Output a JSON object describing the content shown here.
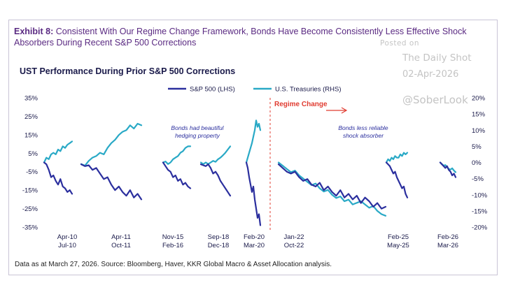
{
  "header": {
    "exhibit_label": "Exhibit 8:",
    "exhibit_text": " Consistent With Our Regime Change Framework, Bonds Have Become Consistently Less Effective Shock Absorbers During Recent S&P 500 Corrections"
  },
  "watermark": {
    "posted": "Posted on",
    "title": "The Daily Shot",
    "date": "02-Apr-2026",
    "handle": "@SoberLook"
  },
  "source": "Data as at March 27, 2026. Source: Bloomberg, Haver, KKR Global Macro & Asset Allocation analysis.",
  "colors": {
    "title_purple": "#5a2a82",
    "sp500": "#2b2f9e",
    "treasuries": "#29a9c6",
    "regime": "#e03c31",
    "axis_text": "#1a1a4a"
  },
  "chart_data": {
    "type": "line",
    "title": "UST Performance During Prior S&P 500 Corrections",
    "legend": [
      "S&P 500 (LHS)",
      "U.S. Treasuries (RHS)"
    ],
    "left_axis": {
      "min": -35,
      "max": 35,
      "ticks": [
        "35%",
        "25%",
        "15%",
        "5%",
        "-5%",
        "-15%",
        "-25%",
        "-35%"
      ]
    },
    "right_axis": {
      "min": -20,
      "max": 20,
      "ticks": [
        "20%",
        "15%",
        "10%",
        "5%",
        "0%",
        "-5%",
        "-10%",
        "-15%",
        "-20%"
      ]
    },
    "regime_label": "Regime Change",
    "annotations": [
      {
        "text": [
          "Bonds had beautiful",
          "hedging property"
        ]
      },
      {
        "text": [
          "Bonds less reliable",
          "shock absorber"
        ]
      }
    ],
    "episodes": [
      {
        "labels": [
          "Apr-10",
          "Jul-10"
        ],
        "sp500": [
          0,
          -1,
          -4,
          -8,
          -7,
          -10,
          -12,
          -9,
          -13,
          -14,
          -16,
          -15,
          -17
        ],
        "ust": [
          0,
          1.5,
          1,
          2.5,
          3,
          2.5,
          4,
          3.5,
          5,
          4.5,
          5.5,
          6,
          6.5
        ]
      },
      {
        "labels": [
          "Apr-11",
          "Oct-11"
        ],
        "sp500": [
          -1,
          -2,
          -1.5,
          -4,
          -3,
          -6,
          -9,
          -8,
          -12,
          -15,
          -13,
          -16,
          -18,
          -15,
          -19,
          -17,
          -20
        ],
        "ust": [
          -0.5,
          -1,
          0.5,
          1.5,
          2,
          3,
          2.5,
          4.5,
          6,
          7,
          8.5,
          9.5,
          10,
          11.5,
          10.5,
          12,
          11.5
        ]
      },
      {
        "labels": [
          "Nov-15",
          "Feb-16"
        ],
        "sp500": [
          0,
          -2,
          -4,
          -5,
          -8,
          -7,
          -10,
          -9,
          -12,
          -11,
          -13,
          -14
        ],
        "ust": [
          0,
          0.3,
          -0.5,
          0,
          1,
          1.5,
          2,
          3,
          3.5,
          4.5,
          5,
          5
        ]
      },
      {
        "labels": [
          "Sep-18",
          "Dec-18"
        ],
        "sp500": [
          -1,
          -1.5,
          -2,
          -1,
          -3,
          -6,
          -5,
          -7,
          -10,
          -12,
          -14,
          -16,
          -18
        ],
        "ust": [
          0,
          -0.5,
          0,
          -0.5,
          0,
          0.5,
          0.2,
          1,
          1.5,
          2.2,
          3,
          4,
          5
        ]
      },
      {
        "labels": [
          "Feb-20",
          "Mar-20"
        ],
        "sp500": [
          0,
          -3,
          -8,
          -12,
          -16,
          -13,
          -20,
          -25,
          -30,
          -28,
          -34
        ],
        "ust": [
          0,
          1.5,
          3,
          4.5,
          6,
          8,
          10,
          13,
          11,
          12,
          10
        ]
      },
      {
        "labels": [
          "Jan-22",
          "Oct-22"
        ],
        "sp500": [
          -1,
          -3,
          -5,
          -6,
          -5,
          -8,
          -10,
          -9,
          -12,
          -13,
          -11,
          -15,
          -13,
          -16,
          -18,
          -15,
          -19,
          -17,
          -20,
          -18,
          -22,
          -19,
          -21,
          -24,
          -22,
          -25,
          -24
        ],
        "ust": [
          0,
          -1,
          -2,
          -3,
          -2.5,
          -4,
          -5,
          -6,
          -7,
          -6.5,
          -8,
          -9,
          -8.5,
          -10,
          -11,
          -10.5,
          -12,
          -11.5,
          -13,
          -12.5,
          -12,
          -13,
          -14,
          -13.5,
          -15,
          -16,
          -16.5
        ]
      },
      {
        "labels": [
          "Feb-25",
          "May-25"
        ],
        "sp500": [
          0,
          -1,
          -2,
          -4,
          -6,
          -5,
          -8,
          -10,
          -12,
          -14,
          -13,
          -17,
          -19
        ],
        "ust": [
          0,
          1,
          0.5,
          1.5,
          1,
          2,
          1.5,
          1.5,
          2.5,
          2,
          3,
          2.5,
          3
        ]
      },
      {
        "labels": [
          "Feb-26",
          "Mar-26"
        ],
        "sp500": [
          0,
          -1,
          -2,
          -3,
          -2,
          -4,
          -5,
          -7,
          -6,
          -8
        ],
        "ust": [
          0,
          -0.5,
          -1,
          -0.8,
          -1.5,
          -2,
          -2.2,
          -1.8,
          -2.5,
          -3
        ]
      }
    ]
  }
}
